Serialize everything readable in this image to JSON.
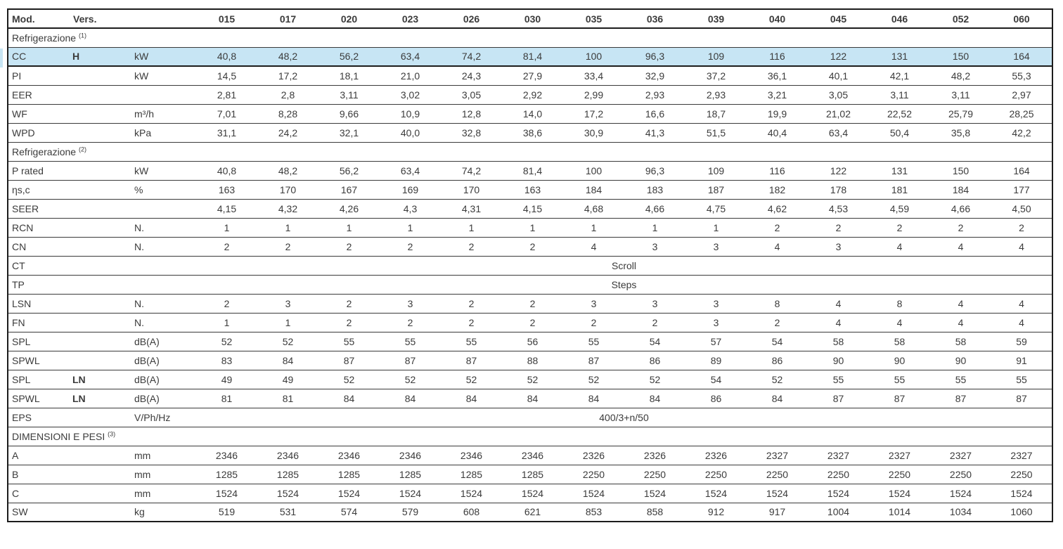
{
  "colors": {
    "highlight_row": "#c7e5f4",
    "border_heavy": "#1c1c1c",
    "border_light": "#3a3a3a",
    "text": "#3b3b3b",
    "background": "#ffffff"
  },
  "table": {
    "header": {
      "mod_label": "Mod.",
      "vers_label": "Vers.",
      "unit_label": "",
      "models": [
        "015",
        "017",
        "020",
        "023",
        "026",
        "030",
        "035",
        "036",
        "039",
        "040",
        "045",
        "046",
        "052",
        "060"
      ]
    },
    "rows": [
      {
        "type": "section",
        "label": "Refrigerazione",
        "note": "(1)"
      },
      {
        "type": "data",
        "label": "CC",
        "vers": "H",
        "unit": "kW",
        "highlight": true,
        "values": [
          "40,8",
          "48,2",
          "56,2",
          "63,4",
          "74,2",
          "81,4",
          "100",
          "96,3",
          "109",
          "116",
          "122",
          "131",
          "150",
          "164"
        ]
      },
      {
        "type": "data",
        "label": "PI",
        "vers": "",
        "unit": "kW",
        "values": [
          "14,5",
          "17,2",
          "18,1",
          "21,0",
          "24,3",
          "27,9",
          "33,4",
          "32,9",
          "37,2",
          "36,1",
          "40,1",
          "42,1",
          "48,2",
          "55,3"
        ]
      },
      {
        "type": "data",
        "label": "EER",
        "vers": "",
        "unit": "",
        "values": [
          "2,81",
          "2,8",
          "3,11",
          "3,02",
          "3,05",
          "2,92",
          "2,99",
          "2,93",
          "2,93",
          "3,21",
          "3,05",
          "3,11",
          "3,11",
          "2,97"
        ]
      },
      {
        "type": "data",
        "label": "WF",
        "vers": "",
        "unit": "m³/h",
        "values": [
          "7,01",
          "8,28",
          "9,66",
          "10,9",
          "12,8",
          "14,0",
          "17,2",
          "16,6",
          "18,7",
          "19,9",
          "21,02",
          "22,52",
          "25,79",
          "28,25"
        ]
      },
      {
        "type": "data",
        "label": "WPD",
        "vers": "",
        "unit": "kPa",
        "values": [
          "31,1",
          "24,2",
          "32,1",
          "40,0",
          "32,8",
          "38,6",
          "30,9",
          "41,3",
          "51,5",
          "40,4",
          "63,4",
          "50,4",
          "35,8",
          "42,2"
        ]
      },
      {
        "type": "section",
        "label": "Refrigerazione",
        "note": "(2)"
      },
      {
        "type": "data",
        "label": "P rated",
        "vers": "",
        "unit": "kW",
        "values": [
          "40,8",
          "48,2",
          "56,2",
          "63,4",
          "74,2",
          "81,4",
          "100",
          "96,3",
          "109",
          "116",
          "122",
          "131",
          "150",
          "164"
        ]
      },
      {
        "type": "data",
        "label": "ηs,c",
        "vers": "",
        "unit": "%",
        "values": [
          "163",
          "170",
          "167",
          "169",
          "170",
          "163",
          "184",
          "183",
          "187",
          "182",
          "178",
          "181",
          "184",
          "177"
        ]
      },
      {
        "type": "data",
        "label": "SEER",
        "vers": "",
        "unit": "",
        "values": [
          "4,15",
          "4,32",
          "4,26",
          "4,3",
          "4,31",
          "4,15",
          "4,68",
          "4,66",
          "4,75",
          "4,62",
          "4,53",
          "4,59",
          "4,66",
          "4,50"
        ]
      },
      {
        "type": "data",
        "label": "RCN",
        "vers": "",
        "unit": "N.",
        "values": [
          "1",
          "1",
          "1",
          "1",
          "1",
          "1",
          "1",
          "1",
          "1",
          "2",
          "2",
          "2",
          "2",
          "2"
        ]
      },
      {
        "type": "data",
        "label": "CN",
        "vers": "",
        "unit": "N.",
        "values": [
          "2",
          "2",
          "2",
          "2",
          "2",
          "2",
          "4",
          "3",
          "3",
          "4",
          "3",
          "4",
          "4",
          "4"
        ]
      },
      {
        "type": "span",
        "label": "CT",
        "vers": "",
        "unit": "",
        "value": "Scroll"
      },
      {
        "type": "span",
        "label": "TP",
        "vers": "",
        "unit": "",
        "value": "Steps"
      },
      {
        "type": "data",
        "label": "LSN",
        "vers": "",
        "unit": "N.",
        "values": [
          "2",
          "3",
          "2",
          "3",
          "2",
          "2",
          "3",
          "3",
          "3",
          "8",
          "4",
          "8",
          "4",
          "4"
        ]
      },
      {
        "type": "data",
        "label": "FN",
        "vers": "",
        "unit": "N.",
        "values": [
          "1",
          "1",
          "2",
          "2",
          "2",
          "2",
          "2",
          "2",
          "3",
          "2",
          "4",
          "4",
          "4",
          "4"
        ]
      },
      {
        "type": "data",
        "label": "SPL",
        "vers": "",
        "unit": "dB(A)",
        "values": [
          "52",
          "52",
          "55",
          "55",
          "55",
          "56",
          "55",
          "54",
          "57",
          "54",
          "58",
          "58",
          "58",
          "59"
        ]
      },
      {
        "type": "data",
        "label": "SPWL",
        "vers": "",
        "unit": "dB(A)",
        "values": [
          "83",
          "84",
          "87",
          "87",
          "87",
          "88",
          "87",
          "86",
          "89",
          "86",
          "90",
          "90",
          "90",
          "91"
        ]
      },
      {
        "type": "data",
        "label": "SPL",
        "vers": "LN",
        "unit": "dB(A)",
        "values": [
          "49",
          "49",
          "52",
          "52",
          "52",
          "52",
          "52",
          "52",
          "54",
          "52",
          "55",
          "55",
          "55",
          "55"
        ]
      },
      {
        "type": "data",
        "label": "SPWL",
        "vers": "LN",
        "unit": "dB(A)",
        "values": [
          "81",
          "81",
          "84",
          "84",
          "84",
          "84",
          "84",
          "84",
          "86",
          "84",
          "87",
          "87",
          "87",
          "87"
        ]
      },
      {
        "type": "span",
        "label": "EPS",
        "vers": "",
        "unit": "V/Ph/Hz",
        "value": "400/3+n/50"
      },
      {
        "type": "section",
        "label": "DIMENSIONI E PESI",
        "note": "(3)"
      },
      {
        "type": "data",
        "label": "A",
        "vers": "",
        "unit": "mm",
        "values": [
          "2346",
          "2346",
          "2346",
          "2346",
          "2346",
          "2346",
          "2326",
          "2326",
          "2326",
          "2327",
          "2327",
          "2327",
          "2327",
          "2327"
        ]
      },
      {
        "type": "data",
        "label": "B",
        "vers": "",
        "unit": "mm",
        "values": [
          "1285",
          "1285",
          "1285",
          "1285",
          "1285",
          "1285",
          "2250",
          "2250",
          "2250",
          "2250",
          "2250",
          "2250",
          "2250",
          "2250"
        ]
      },
      {
        "type": "data",
        "label": "C",
        "vers": "",
        "unit": "mm",
        "values": [
          "1524",
          "1524",
          "1524",
          "1524",
          "1524",
          "1524",
          "1524",
          "1524",
          "1524",
          "1524",
          "1524",
          "1524",
          "1524",
          "1524"
        ]
      },
      {
        "type": "data",
        "label": "SW",
        "vers": "",
        "unit": "kg",
        "values": [
          "519",
          "531",
          "574",
          "579",
          "608",
          "621",
          "853",
          "858",
          "912",
          "917",
          "1004",
          "1014",
          "1034",
          "1060"
        ]
      }
    ]
  }
}
